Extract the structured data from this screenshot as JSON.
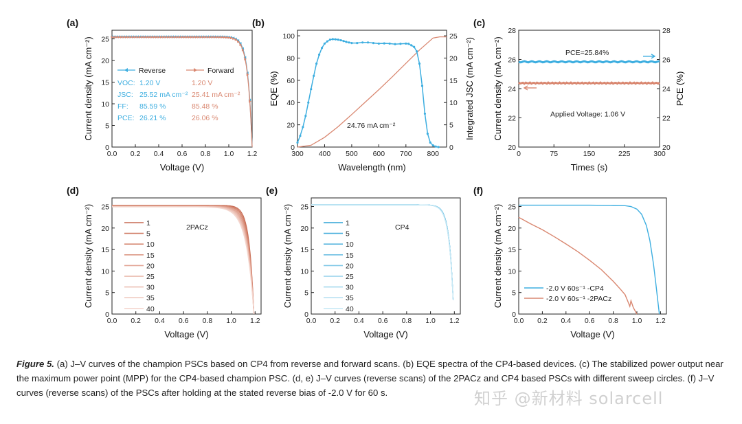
{
  "figure_number_label": "Figure 5.",
  "caption": "(a) J–V curves of the champion PSCs based on CP4 from reverse and forward scans. (b) EQE spectra of the CP4-based devices. (c) The stabilized power output near the maximum power point (MPP) for the CP4-based champion PSC. (d, e) J–V curves (reverse scans) of the 2PACz and CP4 based PSCs with different sweep circles. (f) J–V curves (reverse scans) of the PSCs after holding at the stated reverse bias of -2.0 V for 60 s.",
  "watermark": "知乎 @新材料 solarcell",
  "colors": {
    "blue": "#3daee0",
    "red": "#d98770",
    "axis": "#222222"
  },
  "chart_data": [
    {
      "id": "a",
      "panel_label": "(a)",
      "type": "line",
      "xlabel": "Voltage (V)",
      "ylabel": "Current density (mA cm⁻²)",
      "xlim": [
        0,
        1.2
      ],
      "ylim": [
        0,
        27
      ],
      "xticks": [
        "0.0",
        "0.2",
        "0.4",
        "0.6",
        "0.8",
        "1.0",
        "1.2"
      ],
      "yticks": [
        "0",
        "5",
        "10",
        "15",
        "20",
        "25"
      ],
      "series": [
        {
          "name": "Reverse",
          "voc": 1.2,
          "jsc": 25.52,
          "n": 1.4,
          "color": "#3daee0",
          "marker": "tri-left"
        },
        {
          "name": "Forward",
          "voc": 1.2,
          "jsc": 25.41,
          "n": 1.45,
          "color": "#d98770",
          "marker": "tri-right"
        }
      ],
      "table": {
        "rows": [
          {
            "label": "VOC:",
            "reverse": "1.20 V",
            "forward": "1.20 V"
          },
          {
            "label": "JSC:",
            "reverse": "25.52 mA cm⁻²",
            "forward": "25.41 mA cm⁻²"
          },
          {
            "label": "FF:",
            "reverse": "85.59 %",
            "forward": "85.48 %"
          },
          {
            "label": "PCE:",
            "reverse": "26.21 %",
            "forward": "26.06 %"
          }
        ]
      }
    },
    {
      "id": "b",
      "panel_label": "(b)",
      "type": "line",
      "xlabel": "Wavelength (nm)",
      "ylabel": "EQE (%)",
      "ylabel_right": "Integrated JSC (mA cm⁻²)",
      "xlim": [
        300,
        850
      ],
      "ylim": [
        0,
        105
      ],
      "ylim_right": [
        0,
        26.25
      ],
      "xticks": [
        "300",
        "400",
        "500",
        "600",
        "700",
        "800"
      ],
      "yticks": [
        "0",
        "20",
        "40",
        "60",
        "80",
        "100"
      ],
      "yticks_right": [
        "0",
        "5",
        "10",
        "15",
        "20",
        "25"
      ],
      "annotation": "24.76 mA cm⁻²",
      "eqe": {
        "x": [
          300,
          310,
          320,
          330,
          340,
          350,
          360,
          370,
          380,
          390,
          400,
          410,
          420,
          430,
          440,
          450,
          460,
          470,
          480,
          490,
          500,
          520,
          540,
          560,
          580,
          600,
          620,
          640,
          660,
          680,
          700,
          710,
          720,
          730,
          740,
          750,
          760,
          770,
          780,
          790,
          800,
          810,
          820
        ],
        "y": [
          4,
          10,
          18,
          28,
          40,
          52,
          64,
          75,
          83,
          89,
          93,
          95,
          96.5,
          97,
          96.8,
          96.5,
          96,
          95.3,
          94.5,
          94,
          93.5,
          93.5,
          94,
          94,
          93.5,
          93,
          93.2,
          93,
          92.5,
          92.8,
          93,
          92.8,
          91.5,
          90,
          86,
          75,
          55,
          30,
          12,
          4,
          1.5,
          0.5,
          0
        ]
      },
      "integrated_jsc": {
        "x": [
          300,
          350,
          400,
          450,
          500,
          550,
          600,
          650,
          700,
          750,
          800,
          825,
          850
        ],
        "y": [
          0,
          0.4,
          2.2,
          4.6,
          7.3,
          10.1,
          12.9,
          15.8,
          18.8,
          21.8,
          24.5,
          24.76,
          24.76
        ]
      }
    },
    {
      "id": "c",
      "panel_label": "(c)",
      "type": "line",
      "xlabel": "Times (s)",
      "ylabel": "Current density (mA cm⁻²)",
      "ylabel_right": "PCE (%)",
      "xlim": [
        0,
        300
      ],
      "ylim": [
        20,
        28
      ],
      "ylim_right": [
        20,
        28
      ],
      "xticks": [
        "0",
        "75",
        "150",
        "225",
        "300"
      ],
      "yticks": [
        "20",
        "22",
        "24",
        "26",
        "28"
      ],
      "yticks_right": [
        "20",
        "22",
        "24",
        "26",
        "28"
      ],
      "annotations": [
        "PCE=25.84%",
        "Applied Voltage: 1.06 V"
      ],
      "series": [
        {
          "name": "PCE",
          "value": 25.84,
          "color": "#3daee0",
          "axis": "right"
        },
        {
          "name": "Current density",
          "value": 24.38,
          "color": "#d98770",
          "axis": "left"
        }
      ]
    },
    {
      "id": "d",
      "panel_label": "(d)",
      "type": "line",
      "xlabel": "Voltage (V)",
      "ylabel": "Current density (mA cm⁻²)",
      "xlim": [
        0,
        1.25
      ],
      "ylim": [
        0,
        27
      ],
      "xticks": [
        "0.0",
        "0.2",
        "0.4",
        "0.6",
        "0.8",
        "1.0",
        "1.2"
      ],
      "yticks": [
        "0",
        "5",
        "10",
        "15",
        "20",
        "25"
      ],
      "label": "2PACz",
      "sweeps": [
        "1",
        "5",
        "10",
        "15",
        "20",
        "25",
        "30",
        "35",
        "40"
      ],
      "voc": 1.19,
      "jsc": 25.3
    },
    {
      "id": "e",
      "panel_label": "(e)",
      "type": "line",
      "xlabel": "Voltage (V)",
      "ylabel": "Current density (mA cm⁻²)",
      "xlim": [
        0,
        1.25
      ],
      "ylim": [
        0,
        27
      ],
      "xticks": [
        "0.0",
        "0.2",
        "0.4",
        "0.6",
        "0.8",
        "1.0",
        "1.2"
      ],
      "yticks": [
        "0",
        "5",
        "10",
        "15",
        "20",
        "25"
      ],
      "label": "CP4",
      "sweeps": [
        "1",
        "5",
        "10",
        "15",
        "20",
        "25",
        "30",
        "35",
        "40"
      ],
      "voc": 1.195,
      "jsc": 25.4
    },
    {
      "id": "f",
      "panel_label": "(f)",
      "type": "line",
      "xlabel": "Voltage (V)",
      "ylabel": "Current density (mA cm⁻²)",
      "xlim": [
        0,
        1.25
      ],
      "ylim": [
        0,
        27
      ],
      "xticks": [
        "0.0",
        "0.2",
        "0.4",
        "0.6",
        "0.8",
        "1.0",
        "1.2"
      ],
      "yticks": [
        "0",
        "5",
        "10",
        "15",
        "20",
        "25"
      ],
      "series": [
        {
          "name": "-2.0 V 60s⁻¹ -CP4",
          "color": "#3daee0",
          "x": [
            0,
            0.2,
            0.4,
            0.6,
            0.8,
            0.9,
            0.95,
            1.0,
            1.04,
            1.08,
            1.11,
            1.14,
            1.16,
            1.18,
            1.19
          ],
          "y": [
            25.3,
            25.3,
            25.3,
            25.3,
            25.25,
            25.2,
            25.0,
            24.4,
            23.2,
            20.6,
            17.1,
            11.7,
            7.2,
            2.3,
            0
          ]
        },
        {
          "name": "-2.0 V 60s⁻¹ -2PACz",
          "color": "#d98770",
          "x": [
            0,
            0.1,
            0.2,
            0.3,
            0.4,
            0.5,
            0.6,
            0.7,
            0.8,
            0.86,
            0.9,
            0.92,
            0.94,
            0.95,
            0.97,
            1.0
          ],
          "y": [
            22.5,
            21.0,
            19.6,
            18.0,
            16.3,
            14.5,
            12.5,
            10.3,
            7.6,
            5.8,
            4.5,
            3.2,
            1.8,
            3.1,
            1.5,
            0
          ]
        }
      ]
    }
  ]
}
